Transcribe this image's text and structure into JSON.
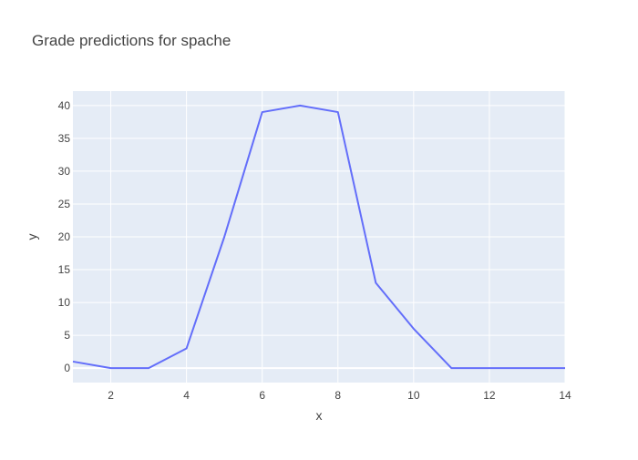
{
  "chart_data": {
    "type": "line",
    "title": "Grade predictions for spache",
    "xlabel": "x",
    "ylabel": "y",
    "xlim": [
      1,
      14
    ],
    "ylim": [
      -2.2,
      42.2
    ],
    "x_ticks": [
      2,
      4,
      6,
      8,
      10,
      12,
      14
    ],
    "y_ticks": [
      0,
      5,
      10,
      15,
      20,
      25,
      30,
      35,
      40
    ],
    "grid": true,
    "series": [
      {
        "x": [
          1,
          2,
          3,
          4,
          5,
          6,
          7,
          8,
          9,
          10,
          11,
          12,
          13,
          14
        ],
        "values": [
          1,
          0,
          0,
          3,
          20,
          39,
          40,
          39,
          13,
          6,
          0,
          0,
          0,
          0
        ],
        "color": "#636efa"
      }
    ],
    "colors": {
      "plot_background": "#e5ecf6",
      "grid": "#ffffff",
      "text": "#444444"
    }
  }
}
